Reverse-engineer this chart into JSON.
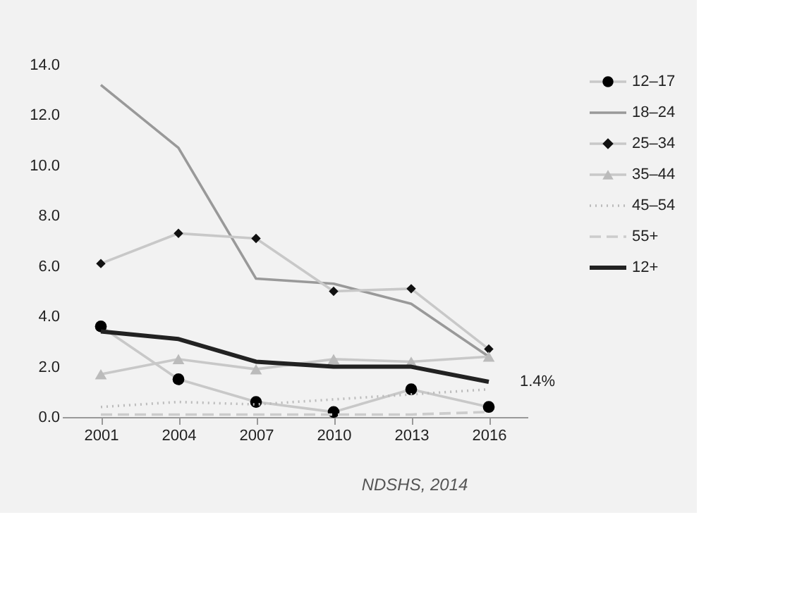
{
  "chart_data": {
    "type": "line",
    "categories": [
      "2001",
      "2004",
      "2007",
      "2010",
      "2013",
      "2016"
    ],
    "series": [
      {
        "name": "12–17",
        "color": "#000000",
        "marker": "circle",
        "line_style": "solid",
        "values": [
          3.6,
          1.5,
          0.6,
          0.2,
          1.1,
          0.4
        ]
      },
      {
        "name": "18–24",
        "color": "#999999",
        "marker": "none",
        "line_style": "solid",
        "values": [
          13.2,
          10.7,
          5.5,
          5.3,
          4.5,
          2.4
        ]
      },
      {
        "name": "25–34",
        "color": "#111111",
        "marker": "diamond",
        "line_style": "solid",
        "values": [
          6.1,
          7.3,
          7.1,
          5.0,
          5.1,
          2.7
        ]
      },
      {
        "name": "35–44",
        "color": "#bbbbbb",
        "marker": "triangle",
        "line_style": "solid",
        "values": [
          1.7,
          2.3,
          1.9,
          2.3,
          2.2,
          2.4
        ]
      },
      {
        "name": "45–54",
        "color": "#bbbbbb",
        "marker": "none",
        "line_style": "dotted",
        "values": [
          0.4,
          0.6,
          0.5,
          0.7,
          0.9,
          1.1
        ]
      },
      {
        "name": "55+",
        "color": "#cccccc",
        "marker": "none",
        "line_style": "dashed",
        "values": [
          0.1,
          0.1,
          0.1,
          0.1,
          0.1,
          0.2
        ]
      },
      {
        "name": "12+",
        "color": "#222222",
        "marker": "none",
        "line_style": "solid",
        "values": [
          3.4,
          3.1,
          2.2,
          2.0,
          2.0,
          1.4
        ]
      }
    ],
    "ylim": [
      0,
      14
    ],
    "yticks": [
      {
        "value": 0,
        "label": "0.0"
      },
      {
        "value": 2,
        "label": "2.0"
      },
      {
        "value": 4,
        "label": "4.0"
      },
      {
        "value": 6,
        "label": "6.0"
      },
      {
        "value": 8,
        "label": "8.0"
      },
      {
        "value": 10,
        "label": "10.0"
      },
      {
        "value": 12,
        "label": "12.0"
      },
      {
        "value": 14,
        "label": "14.0"
      }
    ],
    "grid": false,
    "legend": "right",
    "annotations": [
      {
        "text": "1.4%",
        "x": "2016",
        "y": 1.4
      },
      "NDSHS, 2014"
    ]
  }
}
